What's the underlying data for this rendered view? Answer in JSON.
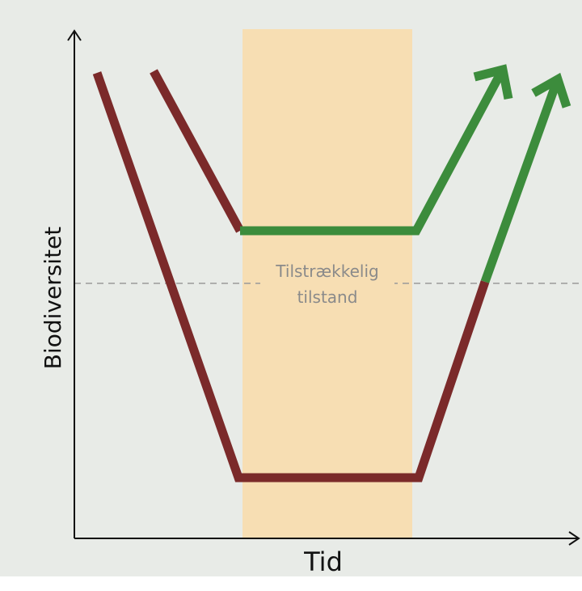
{
  "axes": {
    "y_label": "Biodiversitet",
    "x_label": "Tid"
  },
  "threshold": {
    "label_lines": [
      "Tilstrækkelig",
      "tilstand"
    ]
  }
}
